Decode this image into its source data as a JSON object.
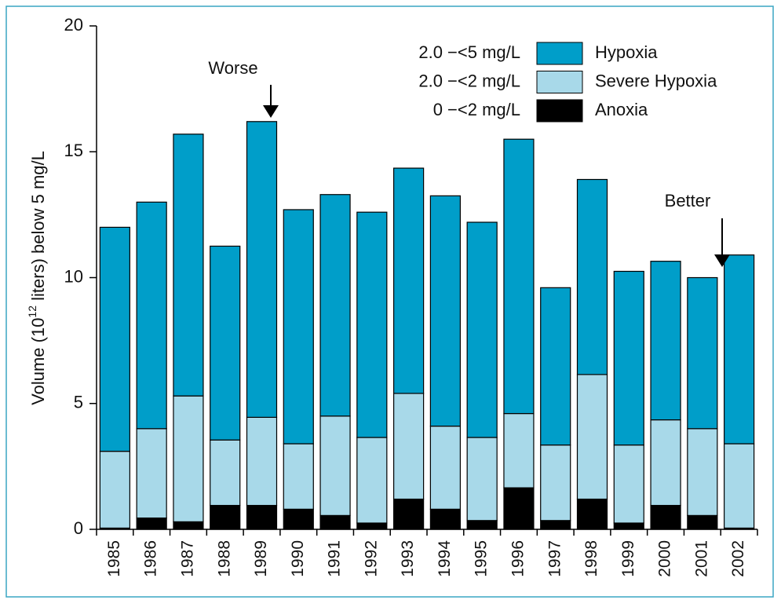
{
  "chart_data": {
    "type": "stacked_bar",
    "y_label": [
      "Volume (10",
      "12",
      " liters) below 5 mg/L"
    ],
    "categories": [
      "1985",
      "1986",
      "1987",
      "1988",
      "1989",
      "1990",
      "1991",
      "1992",
      "1993",
      "1994",
      "1995",
      "1996",
      "1997",
      "1998",
      "1999",
      "2000",
      "2001",
      "2002"
    ],
    "series": [
      {
        "name": "Anoxia",
        "range": "0 −<2 mg/L",
        "color": "#000000",
        "values": [
          0.05,
          0.45,
          0.3,
          0.95,
          0.95,
          0.8,
          0.55,
          0.25,
          1.2,
          0.8,
          0.35,
          1.65,
          0.35,
          1.2,
          0.25,
          0.95,
          0.55,
          0.05
        ]
      },
      {
        "name": "Severe Hypoxia",
        "range": "2.0 −<2 mg/L",
        "color": "#a8d9e9",
        "values": [
          3.05,
          3.55,
          5.0,
          2.6,
          3.5,
          2.6,
          3.95,
          3.4,
          4.2,
          3.3,
          3.3,
          2.95,
          3.0,
          4.95,
          3.1,
          3.4,
          3.45,
          3.35
        ]
      },
      {
        "name": "Hypoxia",
        "range": "2.0 −<5 mg/L",
        "color": "#009ec9",
        "values": [
          8.9,
          9.0,
          10.4,
          7.7,
          11.75,
          9.3,
          8.8,
          8.95,
          8.95,
          9.15,
          8.55,
          10.9,
          6.25,
          7.75,
          6.9,
          6.3,
          6.0,
          7.5
        ]
      }
    ],
    "annotations": [
      "Worse",
      "Better"
    ],
    "ylim": [
      0,
      20
    ],
    "yticks": [
      0,
      5,
      10,
      15,
      20
    ]
  }
}
